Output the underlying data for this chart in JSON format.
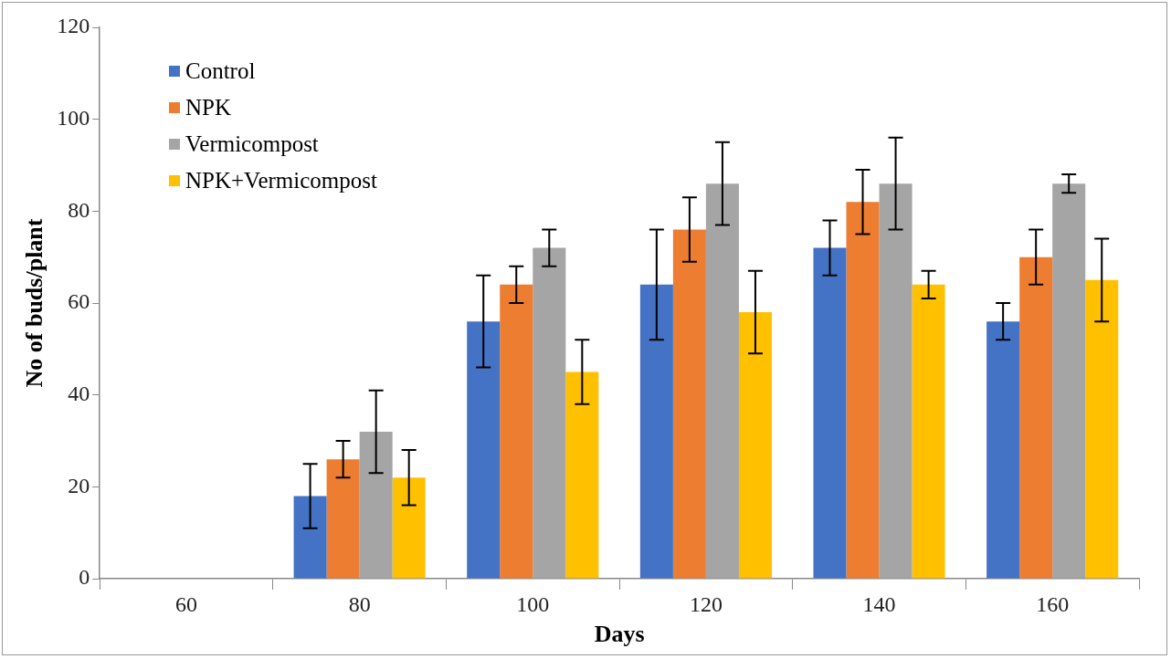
{
  "chart_data": {
    "type": "bar",
    "xlabel": "Days",
    "ylabel": "No of buds/plant",
    "categories": [
      "60",
      "80",
      "100",
      "120",
      "140",
      "160"
    ],
    "series": [
      {
        "name": "Control",
        "color": "#4472c4",
        "values": [
          null,
          18,
          56,
          64,
          72,
          56
        ],
        "errors": [
          null,
          7,
          10,
          12,
          6,
          4
        ]
      },
      {
        "name": "NPK",
        "color": "#ed7d31",
        "values": [
          null,
          26,
          64,
          76,
          82,
          70
        ],
        "errors": [
          null,
          4,
          4,
          7,
          7,
          6
        ]
      },
      {
        "name": "Vermicompost",
        "color": "#a5a5a5",
        "values": [
          null,
          32,
          72,
          86,
          86,
          86
        ],
        "errors": [
          null,
          9,
          4,
          9,
          10,
          2
        ]
      },
      {
        "name": "NPK+Vermicompost",
        "color": "#ffc000",
        "values": [
          null,
          22,
          45,
          58,
          64,
          65
        ],
        "errors": [
          null,
          6,
          7,
          9,
          3,
          9
        ]
      }
    ],
    "ylim": [
      0,
      120
    ],
    "yticks": [
      0,
      20,
      40,
      60,
      80,
      100,
      120
    ],
    "grid": false,
    "legend": "top left"
  }
}
